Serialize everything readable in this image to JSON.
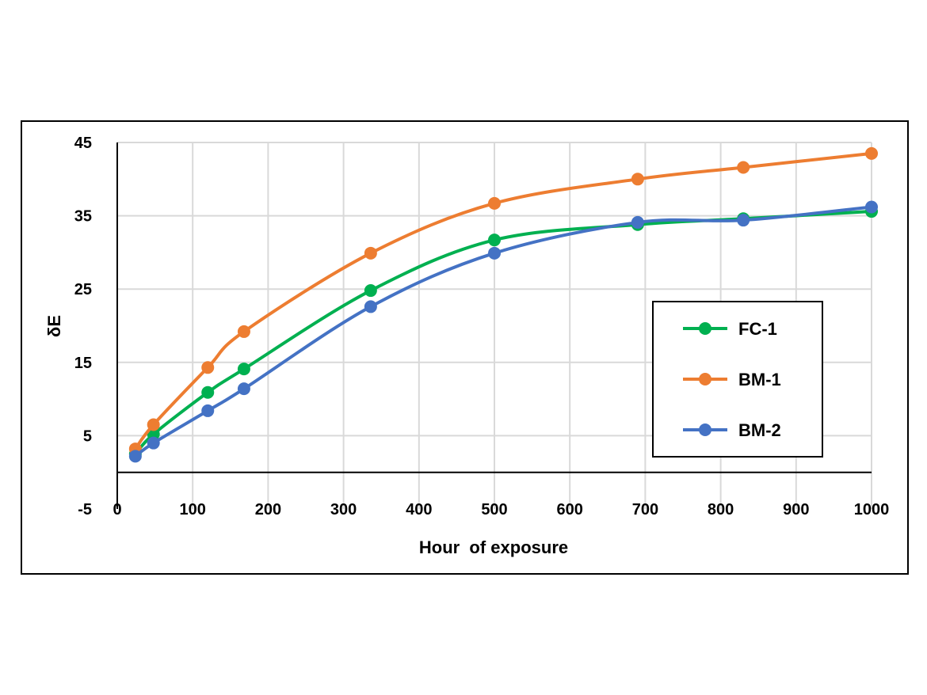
{
  "chart_data": {
    "type": "line",
    "title": "",
    "xlabel": "Hour  of exposure",
    "ylabel": "δE",
    "xlim": [
      0,
      1000
    ],
    "ylim": [
      -5,
      45
    ],
    "xticks": [
      0,
      100,
      200,
      300,
      400,
      500,
      600,
      700,
      800,
      900,
      1000
    ],
    "yticks": [
      -5,
      5,
      15,
      25,
      35,
      45
    ],
    "grid": true,
    "smooth": true,
    "legend_position": "right",
    "series": [
      {
        "name": "FC-1",
        "color": "#00b050",
        "x": [
          24,
          48,
          120,
          168,
          336,
          500,
          690,
          830,
          1000
        ],
        "y": [
          2.5,
          5.2,
          10.9,
          14.1,
          24.8,
          31.7,
          33.8,
          34.6,
          35.6
        ]
      },
      {
        "name": "BM-1",
        "color": "#ed7d31",
        "x": [
          24,
          48,
          120,
          168,
          336,
          500,
          690,
          830,
          1000
        ],
        "y": [
          3.2,
          6.5,
          14.3,
          19.2,
          29.9,
          36.7,
          40.0,
          41.6,
          43.5
        ]
      },
      {
        "name": "BM-2",
        "color": "#4472c4",
        "x": [
          24,
          48,
          120,
          168,
          336,
          500,
          690,
          830,
          1000
        ],
        "y": [
          2.2,
          4.0,
          8.4,
          11.4,
          22.6,
          29.9,
          34.1,
          34.4,
          36.2
        ]
      }
    ]
  }
}
